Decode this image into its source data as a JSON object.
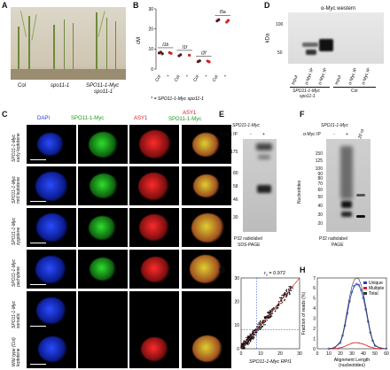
{
  "panels": {
    "A": {
      "letter": "A",
      "labels": [
        "Col",
        "spo11-1",
        "SPO11-1-Myc",
        "spo11-1"
      ]
    },
    "B": {
      "letter": "B",
      "ylabel": "cM",
      "categories": [
        "Col",
        "*",
        "Col",
        "*",
        "Col",
        "*",
        "Col",
        "*"
      ],
      "interval_labels": [
        "I1b",
        "I1f",
        "I2f",
        "I5a"
      ],
      "footnote": "* = SPO11-1-Myc spo11-1"
    },
    "C": {
      "letter": "C",
      "col_headers": [
        "DAPI",
        "SPO11-1-Myc",
        "ASY1"
      ],
      "merge_header_top": "ASY1",
      "merge_header_bottom": "SPO11-1-Myc",
      "rows": [
        {
          "line1": "SPO11-1-Myc",
          "line2": "early leptotene"
        },
        {
          "line1": "SPO11-1-Myc",
          "line2": "mid leptotene"
        },
        {
          "line1": "SPO11-1-Myc",
          "line2": "zygotene"
        },
        {
          "line1": "SPO11-1-Myc",
          "line2": "pachytene"
        },
        {
          "line1": "SPO11-1-Myc",
          "line2": "somatic"
        },
        {
          "line1": "Wild type (Col)",
          "line2": "leptotene"
        }
      ]
    },
    "D": {
      "letter": "D",
      "title": "α-Myc western",
      "ylabel": "kDa",
      "ticks": [
        "100",
        "50"
      ],
      "lanes": [
        "Input",
        "α-Myc IP",
        "α-Myc IP",
        "Input",
        "α-Myc IP",
        "α-Myc IP"
      ],
      "group1_line1": "SPO11-1-Myc",
      "group1_line2": "spo11-1",
      "group2": "Col"
    },
    "E": {
      "letter": "E",
      "title": "SPO11-1-Myc",
      "ip_label": "α-Myc IP",
      "lanes": [
        "-",
        "+"
      ],
      "ylabel": "kDa",
      "ticks": [
        "175",
        "80",
        "58",
        "46",
        "30"
      ],
      "caption_line1": "P32 radiolabel",
      "caption_line2": "SDS-PAGE"
    },
    "F": {
      "letter": "F",
      "title": "SPO11-1-Myc",
      "ip_label": "α-Myc IP",
      "lanes": [
        "-",
        "+",
        "20 nt"
      ],
      "ylabel": "Nucleotides",
      "ticks": [
        "150",
        "125",
        "100",
        "90",
        "80",
        "70",
        "60",
        "50",
        "40",
        "30",
        "20"
      ],
      "caption_line1": "P32 radiolabel",
      "caption_line2": "PAGE"
    }
  },
  "chart_data": [
    {
      "panel": "B",
      "type": "scatter",
      "title": "",
      "xlabel": "",
      "ylabel": "cM",
      "ylim": [
        0,
        30
      ],
      "yticks": [
        0,
        10,
        20,
        30
      ],
      "categories": [
        "Col",
        "*",
        "Col",
        "*",
        "Col",
        "*",
        "Col",
        "*"
      ],
      "groups": [
        "I1b",
        "I1f",
        "I2f",
        "I5a"
      ],
      "points": [
        {
          "group": "I1b",
          "category": "Col",
          "values": [
            8.0,
            8.4,
            7.6
          ]
        },
        {
          "group": "I1b",
          "category": "*",
          "values": [
            8.2,
            7.8
          ]
        },
        {
          "group": "I1f",
          "category": "Col",
          "values": [
            6.6,
            7.1
          ]
        },
        {
          "group": "I1f",
          "category": "*",
          "values": [
            6.9
          ]
        },
        {
          "group": "I2f",
          "category": "Col",
          "values": [
            3.7,
            4.1
          ]
        },
        {
          "group": "I2f",
          "category": "*",
          "values": [
            4.0,
            3.6
          ]
        },
        {
          "group": "I5a",
          "category": "Col",
          "values": [
            24.0,
            24.6
          ]
        },
        {
          "group": "I5a",
          "category": "*",
          "values": [
            23.4,
            24.2
          ]
        }
      ],
      "colors": {
        "Col": "#5a1818",
        "mutant": "#d81e1e"
      }
    },
    {
      "panel": "G",
      "type": "scatter",
      "letter": "G",
      "title": "",
      "annotation": "rs = 0.972",
      "annotation_main": "r",
      "annotation_sub": "s",
      "annotation_value": "= 0.972",
      "xlabel": "SPO11-1-Myc RPI1",
      "ylabel": "SPO11-1-Myc RPI3",
      "xlim": [
        0,
        30
      ],
      "ylim": [
        0,
        30
      ],
      "xticks": [
        0,
        10,
        20,
        30
      ],
      "yticks": [
        0,
        10,
        20,
        30
      ],
      "dashed_x": 8,
      "dashed_y": 8,
      "diagonal": true
    },
    {
      "panel": "H",
      "type": "line",
      "letter": "H",
      "title": "",
      "xlabel_line1": "Alignment Length",
      "xlabel_line2": "(nucleotides)",
      "ylabel": "Fraction of reads (%)",
      "xlim": [
        0,
        60
      ],
      "ylim": [
        0,
        7
      ],
      "xticks": [
        0,
        10,
        20,
        30,
        40,
        50,
        60
      ],
      "yticks": [
        0,
        1,
        2,
        3,
        4,
        5,
        6,
        7
      ],
      "x": [
        10,
        15,
        20,
        22,
        24,
        26,
        28,
        30,
        32,
        34,
        36,
        38,
        40,
        42,
        44,
        46,
        48,
        50,
        55,
        60
      ],
      "series": [
        {
          "name": "Unique",
          "color": "#2b3fb8",
          "values": [
            0.0,
            0.1,
            0.6,
            1.3,
            2.3,
            3.5,
            4.7,
            5.6,
            6.2,
            6.4,
            6.3,
            5.8,
            5.0,
            3.9,
            2.7,
            1.6,
            0.8,
            0.3,
            0.05,
            0.0
          ]
        },
        {
          "name": "Multiple",
          "color": "#e02020",
          "values": [
            0.0,
            0.0,
            0.1,
            0.15,
            0.25,
            0.35,
            0.45,
            0.55,
            0.6,
            0.6,
            0.58,
            0.52,
            0.45,
            0.36,
            0.26,
            0.17,
            0.1,
            0.05,
            0.0,
            0.0
          ]
        },
        {
          "name": "Total",
          "color": "#333333",
          "values": [
            0.0,
            0.1,
            0.7,
            1.45,
            2.55,
            3.85,
            5.15,
            6.15,
            6.8,
            7.0,
            6.9,
            6.3,
            5.45,
            4.25,
            2.95,
            1.75,
            0.9,
            0.35,
            0.05,
            0.0
          ]
        }
      ],
      "legend": "top-right"
    }
  ]
}
